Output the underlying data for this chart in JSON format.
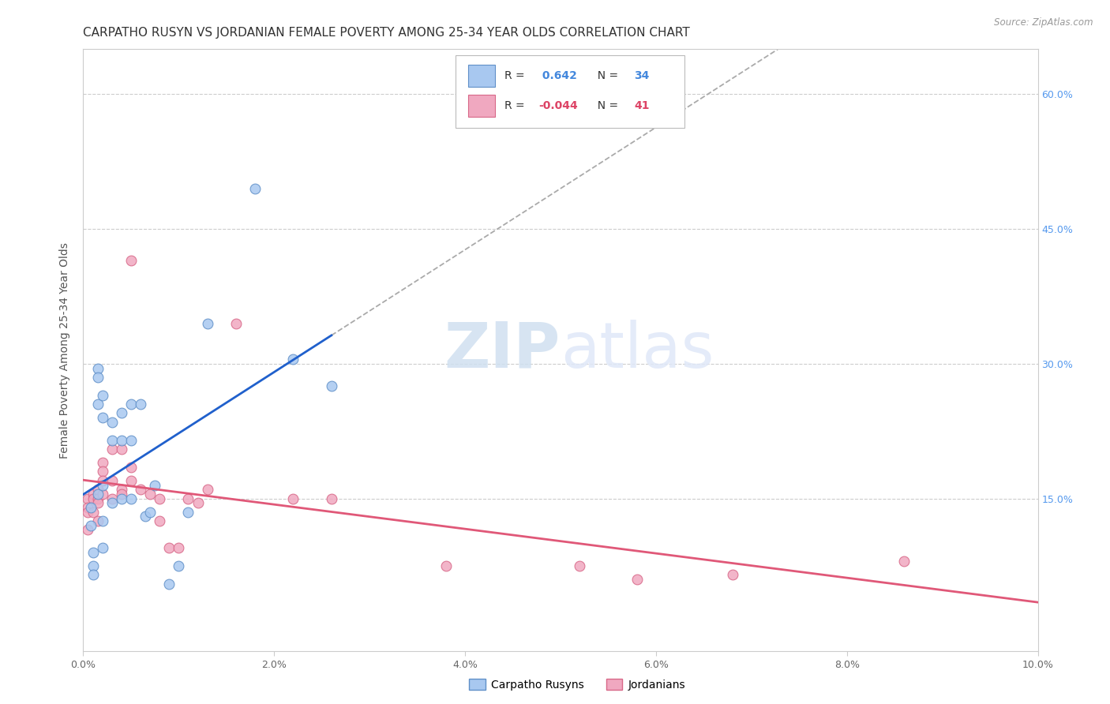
{
  "title": "CARPATHO RUSYN VS JORDANIAN FEMALE POVERTY AMONG 25-34 YEAR OLDS CORRELATION CHART",
  "source": "Source: ZipAtlas.com",
  "ylabel": "Female Poverty Among 25-34 Year Olds",
  "xlim": [
    0.0,
    0.1
  ],
  "ylim": [
    -0.02,
    0.65
  ],
  "xticks": [
    0.0,
    0.02,
    0.04,
    0.06,
    0.08,
    0.1
  ],
  "yticks_right": [
    0.6,
    0.45,
    0.3,
    0.15
  ],
  "right_ytick_labels": [
    "60.0%",
    "45.0%",
    "30.0%",
    "15.0%"
  ],
  "xtick_labels": [
    "0.0%",
    "2.0%",
    "4.0%",
    "6.0%",
    "8.0%",
    "10.0%"
  ],
  "blue_x": [
    0.0008,
    0.0008,
    0.001,
    0.001,
    0.001,
    0.0015,
    0.0015,
    0.0015,
    0.0015,
    0.002,
    0.002,
    0.002,
    0.002,
    0.002,
    0.003,
    0.003,
    0.003,
    0.004,
    0.004,
    0.004,
    0.005,
    0.005,
    0.005,
    0.006,
    0.0065,
    0.007,
    0.0075,
    0.009,
    0.01,
    0.011,
    0.013,
    0.018,
    0.022,
    0.026
  ],
  "blue_y": [
    0.14,
    0.12,
    0.09,
    0.075,
    0.065,
    0.295,
    0.285,
    0.255,
    0.155,
    0.265,
    0.24,
    0.165,
    0.125,
    0.095,
    0.235,
    0.215,
    0.145,
    0.245,
    0.215,
    0.15,
    0.255,
    0.215,
    0.15,
    0.255,
    0.13,
    0.135,
    0.165,
    0.055,
    0.075,
    0.135,
    0.345,
    0.495,
    0.305,
    0.275
  ],
  "pink_x": [
    0.0005,
    0.0005,
    0.0005,
    0.0005,
    0.001,
    0.001,
    0.001,
    0.0015,
    0.0015,
    0.0015,
    0.0015,
    0.002,
    0.002,
    0.002,
    0.002,
    0.003,
    0.003,
    0.003,
    0.004,
    0.004,
    0.004,
    0.005,
    0.005,
    0.005,
    0.006,
    0.007,
    0.008,
    0.008,
    0.009,
    0.01,
    0.011,
    0.012,
    0.013,
    0.016,
    0.022,
    0.026,
    0.038,
    0.052,
    0.058,
    0.068,
    0.086
  ],
  "pink_y": [
    0.15,
    0.14,
    0.135,
    0.115,
    0.155,
    0.15,
    0.135,
    0.16,
    0.15,
    0.145,
    0.125,
    0.19,
    0.18,
    0.17,
    0.155,
    0.205,
    0.17,
    0.15,
    0.205,
    0.16,
    0.155,
    0.415,
    0.185,
    0.17,
    0.16,
    0.155,
    0.15,
    0.125,
    0.095,
    0.095,
    0.15,
    0.145,
    0.16,
    0.345,
    0.15,
    0.15,
    0.075,
    0.075,
    0.06,
    0.065,
    0.08
  ],
  "blue_scatter_color": "#a8c8f0",
  "blue_edge_color": "#6090c8",
  "blue_line_color": "#2060cc",
  "pink_scatter_color": "#f0a8c0",
  "pink_edge_color": "#d86888",
  "pink_line_color": "#e05878",
  "legend_blue_R": "0.642",
  "legend_blue_N": "34",
  "legend_pink_R": "-0.044",
  "legend_pink_N": "41",
  "watermark_zip": "ZIP",
  "watermark_atlas": "atlas",
  "background_color": "#ffffff",
  "grid_color": "#cccccc",
  "title_fontsize": 11,
  "ylabel_fontsize": 10,
  "tick_fontsize": 9,
  "marker_size": 85
}
